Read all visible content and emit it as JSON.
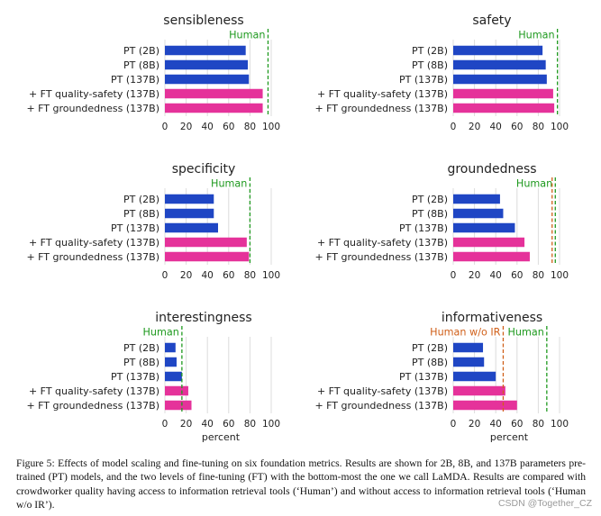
{
  "colors": {
    "pt": "#1f46c4",
    "ft": "#e5329a",
    "human": "#1f9a1f",
    "human_noir": "#d0601a",
    "grid": "#dcdcdc",
    "text": "#222222"
  },
  "categories": [
    "PT (2B)",
    "PT (8B)",
    "PT (137B)",
    "+ FT quality-safety (137B)",
    "+ FT groundedness (137B)"
  ],
  "chart_data": [
    {
      "type": "bar",
      "orientation": "horizontal",
      "title": "sensibleness",
      "xlabel": "",
      "xlim": [
        0,
        100
      ],
      "xticks": [
        0,
        20,
        40,
        60,
        80,
        100
      ],
      "values": [
        76,
        78,
        79,
        92,
        92
      ],
      "references": [
        {
          "name": "Human",
          "value": 97,
          "color": "human"
        }
      ]
    },
    {
      "type": "bar",
      "orientation": "horizontal",
      "title": "safety",
      "xlabel": "",
      "xlim": [
        0,
        100
      ],
      "xticks": [
        0,
        20,
        40,
        60,
        80,
        100
      ],
      "values": [
        84,
        87,
        88,
        94,
        95
      ],
      "references": [
        {
          "name": "Human",
          "value": 98,
          "color": "human"
        }
      ]
    },
    {
      "type": "bar",
      "orientation": "horizontal",
      "title": "specificity",
      "xlabel": "",
      "xlim": [
        0,
        100
      ],
      "xticks": [
        0,
        20,
        40,
        60,
        80,
        100
      ],
      "values": [
        46,
        46,
        50,
        77,
        79
      ],
      "references": [
        {
          "name": "Human",
          "value": 80,
          "color": "human"
        }
      ]
    },
    {
      "type": "bar",
      "orientation": "horizontal",
      "title": "groundedness",
      "xlabel": "",
      "xlim": [
        0,
        100
      ],
      "xticks": [
        0,
        20,
        40,
        60,
        80,
        100
      ],
      "values": [
        44,
        47,
        58,
        67,
        72
      ],
      "references": [
        {
          "name": "Human",
          "value": 96,
          "color": "human"
        },
        {
          "name": "",
          "value": 93,
          "color": "human_noir"
        }
      ]
    },
    {
      "type": "bar",
      "orientation": "horizontal",
      "title": "interestingness",
      "xlabel": "percent",
      "xlim": [
        0,
        100
      ],
      "xticks": [
        0,
        20,
        40,
        60,
        80,
        100
      ],
      "values": [
        10,
        11,
        16,
        22,
        25
      ],
      "references": [
        {
          "name": "Human",
          "value": 16,
          "color": "human"
        }
      ]
    },
    {
      "type": "bar",
      "orientation": "horizontal",
      "title": "informativeness",
      "xlabel": "percent",
      "xlim": [
        0,
        100
      ],
      "xticks": [
        0,
        20,
        40,
        60,
        80,
        100
      ],
      "values": [
        28,
        29,
        40,
        49,
        60
      ],
      "references": [
        {
          "name": "Human",
          "value": 88,
          "color": "human"
        },
        {
          "name": "Human w/o IR",
          "value": 47,
          "color": "human_noir"
        }
      ]
    }
  ],
  "caption": "Figure 5: Effects of model scaling and fine-tuning on six foundation metrics. Results are shown for 2B, 8B, and 137B parameters pre-trained (PT) models, and the two levels of fine-tuning (FT) with the bottom-most the one we call LaMDA. Results are compared with crowdworker quality having access to information retrieval tools (‘Human’) and without access to information retrieval tools (‘Human w/o IR’).",
  "watermark": "CSDN @Together_CZ"
}
